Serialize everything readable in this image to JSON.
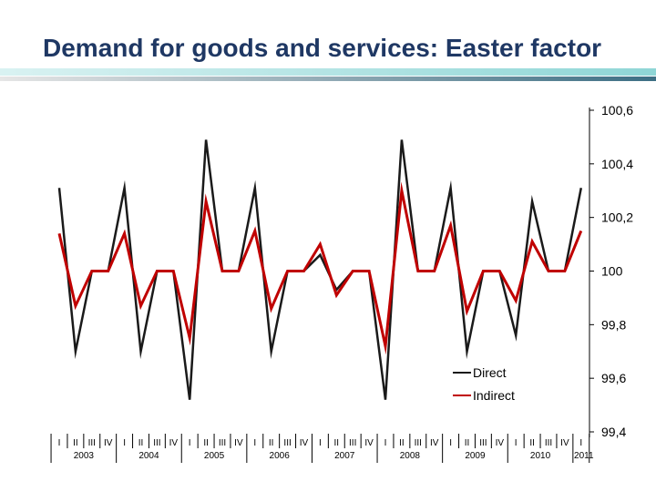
{
  "title": "Demand for goods and services: Easter factor",
  "chart_data": {
    "type": "line",
    "title": "Demand for goods and services: Easter factor",
    "y_axis_position": "right",
    "ylim": [
      99.4,
      100.6
    ],
    "yticks": [
      100.6,
      100.4,
      100.2,
      100,
      99.8,
      99.6,
      99.4
    ],
    "ytick_labels": [
      "100,6",
      "100,4",
      "100,2",
      "100",
      "99,8",
      "99,6",
      "99,4"
    ],
    "quarter_labels": [
      "I",
      "II",
      "III",
      "IV",
      "I",
      "II",
      "III",
      "IV",
      "I",
      "II",
      "III",
      "IV",
      "I",
      "II",
      "III",
      "IV",
      "I",
      "II",
      "III",
      "IV",
      "I",
      "II",
      "III",
      "IV",
      "I",
      "II",
      "III",
      "IV",
      "I",
      "II",
      "III",
      "IV",
      "I"
    ],
    "year_labels": [
      "2003",
      "2004",
      "2005",
      "2006",
      "2007",
      "2008",
      "2009",
      "2010",
      "2011"
    ],
    "legend_position": "bottom-right",
    "series": [
      {
        "name": "Direct",
        "color": "#1a1a1a",
        "values": [
          100.31,
          99.7,
          100.0,
          100.0,
          100.31,
          99.7,
          100.0,
          100.0,
          99.52,
          100.49,
          100.0,
          100.0,
          100.31,
          99.7,
          100.0,
          100.0,
          100.06,
          99.93,
          100.0,
          100.0,
          99.52,
          100.49,
          100.0,
          100.0,
          100.31,
          99.7,
          100.0,
          100.0,
          99.76,
          100.26,
          100.0,
          100.0,
          100.31
        ]
      },
      {
        "name": "Indirect",
        "color": "#c00000",
        "values": [
          100.14,
          99.87,
          100.0,
          100.0,
          100.14,
          99.87,
          100.0,
          100.0,
          99.75,
          100.26,
          100.0,
          100.0,
          100.15,
          99.86,
          100.0,
          100.0,
          100.1,
          99.91,
          100.0,
          100.0,
          99.72,
          100.3,
          100.0,
          100.0,
          100.17,
          99.85,
          100.0,
          100.0,
          99.89,
          100.11,
          100.0,
          100.0,
          100.15
        ]
      }
    ]
  }
}
